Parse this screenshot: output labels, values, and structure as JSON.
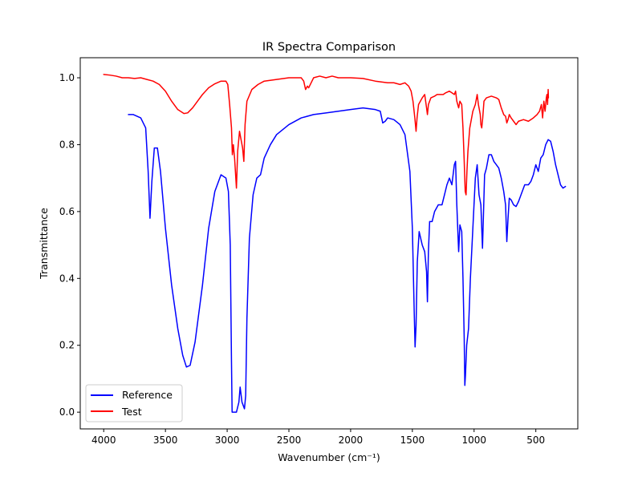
{
  "chart_data": {
    "type": "line",
    "title": "IR Spectra Comparison",
    "xlabel": "Wavenumber (cm⁻¹)",
    "ylabel": "Transmittance",
    "x_inverted": true,
    "xlim": [
      4190,
      160
    ],
    "ylim": [
      -0.05,
      1.06
    ],
    "xticks": [
      4000,
      3500,
      3000,
      2500,
      2000,
      1500,
      1000,
      500
    ],
    "xtick_labels": [
      "4000",
      "3500",
      "3000",
      "2500",
      "2000",
      "1500",
      "1000",
      "500"
    ],
    "yticks": [
      0.0,
      0.2,
      0.4,
      0.6,
      0.8,
      1.0
    ],
    "ytick_labels": [
      "0.0",
      "0.2",
      "0.4",
      "0.6",
      "0.8",
      "1.0"
    ],
    "grid": false,
    "legend_position": "lower-left",
    "series": [
      {
        "name": "Reference",
        "color": "#0000ff",
        "points": [
          [
            3800,
            0.89
          ],
          [
            3760,
            0.89
          ],
          [
            3700,
            0.88
          ],
          [
            3660,
            0.85
          ],
          [
            3640,
            0.72
          ],
          [
            3625,
            0.58
          ],
          [
            3610,
            0.69
          ],
          [
            3590,
            0.79
          ],
          [
            3565,
            0.79
          ],
          [
            3540,
            0.72
          ],
          [
            3500,
            0.55
          ],
          [
            3450,
            0.38
          ],
          [
            3400,
            0.25
          ],
          [
            3360,
            0.17
          ],
          [
            3330,
            0.135
          ],
          [
            3300,
            0.14
          ],
          [
            3260,
            0.21
          ],
          [
            3200,
            0.38
          ],
          [
            3150,
            0.55
          ],
          [
            3100,
            0.66
          ],
          [
            3050,
            0.71
          ],
          [
            3010,
            0.7
          ],
          [
            2990,
            0.66
          ],
          [
            2975,
            0.5
          ],
          [
            2965,
            0.15
          ],
          [
            2960,
            0.0
          ],
          [
            2940,
            0.0
          ],
          [
            2925,
            0.0
          ],
          [
            2905,
            0.03
          ],
          [
            2895,
            0.075
          ],
          [
            2880,
            0.03
          ],
          [
            2860,
            0.01
          ],
          [
            2850,
            0.05
          ],
          [
            2840,
            0.28
          ],
          [
            2820,
            0.52
          ],
          [
            2790,
            0.65
          ],
          [
            2760,
            0.7
          ],
          [
            2730,
            0.71
          ],
          [
            2700,
            0.76
          ],
          [
            2650,
            0.8
          ],
          [
            2600,
            0.83
          ],
          [
            2500,
            0.86
          ],
          [
            2400,
            0.88
          ],
          [
            2300,
            0.89
          ],
          [
            2200,
            0.895
          ],
          [
            2100,
            0.9
          ],
          [
            2000,
            0.905
          ],
          [
            1900,
            0.91
          ],
          [
            1800,
            0.905
          ],
          [
            1760,
            0.9
          ],
          [
            1740,
            0.865
          ],
          [
            1720,
            0.87
          ],
          [
            1700,
            0.88
          ],
          [
            1650,
            0.875
          ],
          [
            1600,
            0.86
          ],
          [
            1560,
            0.83
          ],
          [
            1520,
            0.72
          ],
          [
            1500,
            0.55
          ],
          [
            1485,
            0.3
          ],
          [
            1478,
            0.195
          ],
          [
            1470,
            0.26
          ],
          [
            1460,
            0.45
          ],
          [
            1445,
            0.54
          ],
          [
            1420,
            0.5
          ],
          [
            1400,
            0.48
          ],
          [
            1385,
            0.42
          ],
          [
            1378,
            0.33
          ],
          [
            1370,
            0.48
          ],
          [
            1360,
            0.57
          ],
          [
            1340,
            0.57
          ],
          [
            1320,
            0.6
          ],
          [
            1290,
            0.62
          ],
          [
            1260,
            0.62
          ],
          [
            1240,
            0.65
          ],
          [
            1220,
            0.68
          ],
          [
            1200,
            0.7
          ],
          [
            1180,
            0.68
          ],
          [
            1160,
            0.74
          ],
          [
            1150,
            0.75
          ],
          [
            1140,
            0.62
          ],
          [
            1125,
            0.48
          ],
          [
            1115,
            0.56
          ],
          [
            1100,
            0.54
          ],
          [
            1090,
            0.4
          ],
          [
            1080,
            0.22
          ],
          [
            1075,
            0.08
          ],
          [
            1070,
            0.11
          ],
          [
            1060,
            0.2
          ],
          [
            1045,
            0.25
          ],
          [
            1030,
            0.4
          ],
          [
            1010,
            0.55
          ],
          [
            990,
            0.7
          ],
          [
            975,
            0.74
          ],
          [
            960,
            0.65
          ],
          [
            945,
            0.62
          ],
          [
            932,
            0.49
          ],
          [
            925,
            0.58
          ],
          [
            915,
            0.71
          ],
          [
            900,
            0.73
          ],
          [
            880,
            0.77
          ],
          [
            860,
            0.77
          ],
          [
            840,
            0.75
          ],
          [
            820,
            0.74
          ],
          [
            800,
            0.73
          ],
          [
            780,
            0.7
          ],
          [
            760,
            0.66
          ],
          [
            745,
            0.62
          ],
          [
            735,
            0.51
          ],
          [
            725,
            0.58
          ],
          [
            715,
            0.64
          ],
          [
            700,
            0.635
          ],
          [
            680,
            0.62
          ],
          [
            660,
            0.615
          ],
          [
            640,
            0.63
          ],
          [
            620,
            0.65
          ],
          [
            590,
            0.68
          ],
          [
            560,
            0.68
          ],
          [
            540,
            0.69
          ],
          [
            520,
            0.71
          ],
          [
            500,
            0.74
          ],
          [
            480,
            0.72
          ],
          [
            460,
            0.76
          ],
          [
            440,
            0.77
          ],
          [
            420,
            0.8
          ],
          [
            400,
            0.815
          ],
          [
            380,
            0.81
          ],
          [
            360,
            0.78
          ],
          [
            340,
            0.74
          ],
          [
            320,
            0.71
          ],
          [
            300,
            0.68
          ],
          [
            280,
            0.67
          ],
          [
            260,
            0.675
          ]
        ]
      },
      {
        "name": "Test",
        "color": "#ff0000",
        "points": [
          [
            4000,
            1.01
          ],
          [
            3950,
            1.008
          ],
          [
            3900,
            1.005
          ],
          [
            3850,
            1.0
          ],
          [
            3800,
            1.0
          ],
          [
            3750,
            0.998
          ],
          [
            3700,
            1.0
          ],
          [
            3650,
            0.995
          ],
          [
            3600,
            0.99
          ],
          [
            3550,
            0.98
          ],
          [
            3500,
            0.96
          ],
          [
            3450,
            0.93
          ],
          [
            3400,
            0.905
          ],
          [
            3350,
            0.893
          ],
          [
            3320,
            0.895
          ],
          [
            3280,
            0.91
          ],
          [
            3240,
            0.93
          ],
          [
            3200,
            0.95
          ],
          [
            3150,
            0.97
          ],
          [
            3100,
            0.982
          ],
          [
            3050,
            0.99
          ],
          [
            3010,
            0.99
          ],
          [
            2995,
            0.98
          ],
          [
            2980,
            0.92
          ],
          [
            2965,
            0.85
          ],
          [
            2958,
            0.77
          ],
          [
            2950,
            0.8
          ],
          [
            2940,
            0.76
          ],
          [
            2930,
            0.7
          ],
          [
            2925,
            0.67
          ],
          [
            2915,
            0.78
          ],
          [
            2900,
            0.84
          ],
          [
            2890,
            0.82
          ],
          [
            2875,
            0.79
          ],
          [
            2865,
            0.75
          ],
          [
            2855,
            0.86
          ],
          [
            2840,
            0.93
          ],
          [
            2800,
            0.965
          ],
          [
            2750,
            0.98
          ],
          [
            2700,
            0.99
          ],
          [
            2600,
            0.995
          ],
          [
            2500,
            1.0
          ],
          [
            2400,
            1.0
          ],
          [
            2380,
            0.99
          ],
          [
            2365,
            0.965
          ],
          [
            2350,
            0.975
          ],
          [
            2340,
            0.97
          ],
          [
            2320,
            0.985
          ],
          [
            2300,
            1.0
          ],
          [
            2250,
            1.005
          ],
          [
            2200,
            1.0
          ],
          [
            2150,
            1.005
          ],
          [
            2100,
            1.0
          ],
          [
            2000,
            1.0
          ],
          [
            1900,
            0.998
          ],
          [
            1800,
            0.99
          ],
          [
            1700,
            0.985
          ],
          [
            1650,
            0.985
          ],
          [
            1600,
            0.98
          ],
          [
            1560,
            0.985
          ],
          [
            1530,
            0.975
          ],
          [
            1510,
            0.96
          ],
          [
            1495,
            0.93
          ],
          [
            1480,
            0.88
          ],
          [
            1470,
            0.84
          ],
          [
            1462,
            0.88
          ],
          [
            1450,
            0.92
          ],
          [
            1420,
            0.94
          ],
          [
            1400,
            0.95
          ],
          [
            1385,
            0.91
          ],
          [
            1378,
            0.89
          ],
          [
            1370,
            0.92
          ],
          [
            1350,
            0.94
          ],
          [
            1320,
            0.945
          ],
          [
            1300,
            0.95
          ],
          [
            1250,
            0.95
          ],
          [
            1230,
            0.955
          ],
          [
            1200,
            0.96
          ],
          [
            1180,
            0.955
          ],
          [
            1160,
            0.95
          ],
          [
            1150,
            0.96
          ],
          [
            1140,
            0.93
          ],
          [
            1125,
            0.91
          ],
          [
            1115,
            0.93
          ],
          [
            1100,
            0.92
          ],
          [
            1090,
            0.85
          ],
          [
            1080,
            0.75
          ],
          [
            1072,
            0.66
          ],
          [
            1065,
            0.65
          ],
          [
            1058,
            0.72
          ],
          [
            1050,
            0.78
          ],
          [
            1035,
            0.85
          ],
          [
            1010,
            0.9
          ],
          [
            990,
            0.92
          ],
          [
            975,
            0.95
          ],
          [
            965,
            0.92
          ],
          [
            950,
            0.89
          ],
          [
            945,
            0.86
          ],
          [
            938,
            0.85
          ],
          [
            930,
            0.88
          ],
          [
            920,
            0.93
          ],
          [
            900,
            0.94
          ],
          [
            860,
            0.945
          ],
          [
            820,
            0.94
          ],
          [
            800,
            0.935
          ],
          [
            780,
            0.91
          ],
          [
            760,
            0.89
          ],
          [
            745,
            0.885
          ],
          [
            735,
            0.865
          ],
          [
            725,
            0.875
          ],
          [
            715,
            0.89
          ],
          [
            700,
            0.88
          ],
          [
            680,
            0.87
          ],
          [
            660,
            0.86
          ],
          [
            640,
            0.87
          ],
          [
            600,
            0.875
          ],
          [
            560,
            0.87
          ],
          [
            520,
            0.88
          ],
          [
            490,
            0.89
          ],
          [
            470,
            0.9
          ],
          [
            455,
            0.92
          ],
          [
            445,
            0.88
          ],
          [
            435,
            0.93
          ],
          [
            425,
            0.9
          ],
          [
            415,
            0.94
          ],
          [
            410,
            0.95
          ],
          [
            405,
            0.92
          ],
          [
            400,
            0.965
          ],
          [
            398,
            0.94
          ]
        ]
      }
    ]
  }
}
